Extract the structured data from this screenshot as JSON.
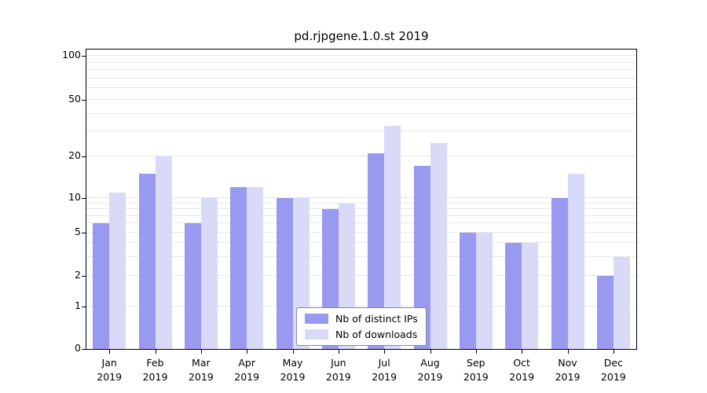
{
  "chart_data": {
    "type": "bar",
    "title": "pd.rjpgene.1.0.st 2019",
    "categories": [
      "Jan",
      "Feb",
      "Mar",
      "Apr",
      "May",
      "Jun",
      "Jul",
      "Aug",
      "Sep",
      "Oct",
      "Nov",
      "Dec"
    ],
    "year_label": "2019",
    "series": [
      {
        "name": "Nb of distinct IPs",
        "color": "#9999f0",
        "values": [
          6,
          15,
          6,
          12,
          10,
          8,
          21,
          17,
          5,
          4,
          10,
          2
        ]
      },
      {
        "name": "Nb of downloads",
        "color": "#d9d9f8",
        "values": [
          11,
          20,
          10,
          12,
          10,
          9,
          33,
          25,
          5,
          4,
          15,
          3
        ]
      }
    ],
    "yscale": "symlog",
    "ylim": [
      0,
      110
    ],
    "y_ticks": [
      0,
      1,
      2,
      5,
      10,
      20,
      50,
      100
    ],
    "y_minor_gridlines": [
      3,
      4,
      6,
      7,
      8,
      9,
      30,
      40,
      60,
      70,
      80,
      90
    ],
    "grid": true,
    "legend_position": "lower center",
    "colors": {
      "grid": "#e7e7e7",
      "spine": "#000000",
      "background": "#ffffff",
      "text": "#000000"
    }
  }
}
